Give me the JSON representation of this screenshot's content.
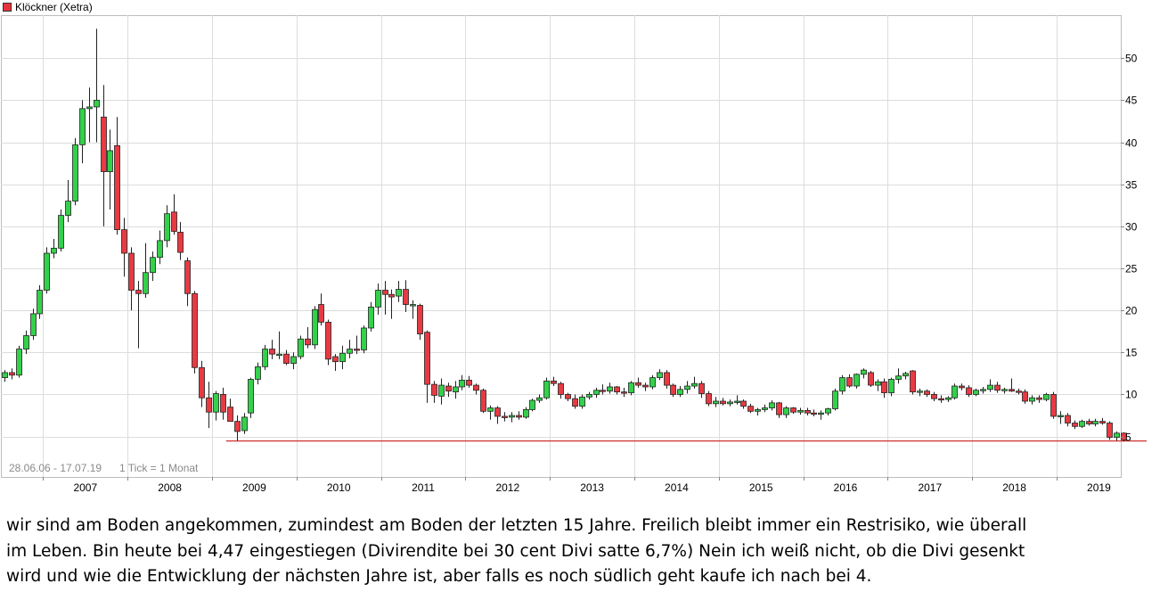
{
  "chart_data": {
    "type": "candlestick",
    "title": "Klöckner (Xetra)",
    "legend_placement": "top-left",
    "date_range_label": "28.06.06 - 17.07.19",
    "tick_label": "1 Tick = 1 Monat",
    "grid": true,
    "ylim": [
      4,
      55
    ],
    "y_ticks": [
      5,
      10,
      15,
      20,
      25,
      30,
      35,
      40,
      45,
      50
    ],
    "x_ticks": [
      "2007",
      "2008",
      "2009",
      "2010",
      "2011",
      "2012",
      "2013",
      "2014",
      "2015",
      "2016",
      "2017",
      "2018",
      "2019"
    ],
    "first_month": "2006-07",
    "ohlc": [
      [
        12.0,
        12.9,
        11.5,
        12.6
      ],
      [
        12.6,
        13.1,
        11.8,
        12.3
      ],
      [
        12.3,
        15.8,
        12.0,
        15.4
      ],
      [
        15.4,
        17.6,
        14.8,
        17.0
      ],
      [
        17.0,
        20.2,
        16.5,
        19.6
      ],
      [
        19.6,
        23.0,
        19.0,
        22.4
      ],
      [
        22.4,
        27.5,
        22.0,
        26.8
      ],
      [
        26.8,
        28.5,
        26.2,
        27.4
      ],
      [
        27.4,
        32.0,
        27.0,
        31.3
      ],
      [
        31.3,
        35.5,
        30.5,
        33.0
      ],
      [
        33.0,
        40.5,
        32.5,
        39.7
      ],
      [
        39.7,
        45.0,
        37.5,
        44.0
      ],
      [
        44.0,
        46.5,
        40.0,
        44.2
      ],
      [
        44.2,
        53.5,
        40.0,
        45.0
      ],
      [
        43.0,
        46.8,
        30.0,
        36.5
      ],
      [
        36.5,
        41.5,
        32.0,
        39.0
      ],
      [
        39.6,
        43.0,
        29.0,
        29.6
      ],
      [
        29.6,
        31.0,
        24.0,
        26.8
      ],
      [
        26.8,
        27.5,
        20.0,
        22.4
      ],
      [
        22.4,
        23.5,
        15.5,
        22.0
      ],
      [
        22.0,
        28.0,
        21.5,
        24.5
      ],
      [
        24.5,
        27.0,
        23.5,
        26.3
      ],
      [
        26.3,
        29.5,
        25.5,
        28.3
      ],
      [
        28.3,
        32.5,
        27.5,
        31.5
      ],
      [
        31.7,
        33.8,
        29.0,
        29.4
      ],
      [
        29.3,
        30.5,
        26.0,
        26.9
      ],
      [
        25.9,
        26.3,
        20.5,
        22.0
      ],
      [
        22.0,
        22.3,
        12.5,
        13.2
      ],
      [
        13.2,
        14.0,
        8.5,
        9.6
      ],
      [
        9.6,
        11.5,
        6.0,
        7.9
      ],
      [
        7.9,
        10.4,
        6.9,
        10.1
      ],
      [
        10.0,
        10.8,
        7.0,
        7.9
      ],
      [
        8.5,
        9.5,
        6.8,
        6.8
      ],
      [
        6.8,
        7.5,
        4.5,
        5.6
      ],
      [
        5.7,
        7.8,
        5.3,
        7.3
      ],
      [
        7.8,
        12.0,
        7.2,
        11.8
      ],
      [
        11.8,
        13.8,
        11.2,
        13.3
      ],
      [
        13.3,
        15.9,
        12.9,
        15.4
      ],
      [
        15.4,
        16.5,
        14.2,
        14.8
      ],
      [
        14.8,
        17.5,
        14.2,
        14.8
      ],
      [
        14.8,
        15.3,
        13.5,
        13.7
      ],
      [
        13.7,
        15.0,
        13.0,
        14.5
      ],
      [
        14.5,
        17.0,
        14.2,
        16.6
      ],
      [
        16.6,
        18.0,
        15.5,
        15.9
      ],
      [
        15.9,
        20.5,
        15.4,
        20.1
      ],
      [
        20.7,
        22.0,
        18.2,
        18.6
      ],
      [
        18.6,
        18.9,
        13.5,
        14.2
      ],
      [
        14.5,
        14.8,
        12.8,
        13.9
      ],
      [
        13.9,
        15.8,
        13.0,
        14.9
      ],
      [
        14.9,
        16.5,
        14.3,
        15.4
      ],
      [
        15.4,
        17.0,
        14.8,
        15.3
      ],
      [
        15.3,
        18.2,
        14.9,
        17.9
      ],
      [
        17.9,
        21.0,
        17.5,
        20.4
      ],
      [
        20.4,
        23.2,
        19.5,
        22.4
      ],
      [
        22.4,
        23.5,
        19.5,
        21.9
      ],
      [
        21.9,
        22.5,
        19.0,
        21.6
      ],
      [
        21.7,
        23.5,
        21.0,
        22.5
      ],
      [
        22.5,
        23.6,
        19.8,
        20.7
      ],
      [
        20.7,
        21.2,
        19.0,
        20.7
      ],
      [
        20.6,
        20.8,
        16.5,
        17.2
      ],
      [
        17.4,
        17.6,
        9.0,
        11.2
      ],
      [
        11.2,
        11.6,
        9.0,
        9.9
      ],
      [
        9.8,
        11.9,
        8.8,
        11.1
      ],
      [
        11.0,
        11.4,
        9.7,
        10.4
      ],
      [
        10.3,
        11.6,
        9.5,
        10.9
      ],
      [
        10.9,
        12.3,
        10.5,
        11.7
      ],
      [
        11.7,
        12.2,
        10.8,
        11.1
      ],
      [
        11.1,
        11.3,
        10.0,
        10.5
      ],
      [
        10.5,
        10.7,
        7.8,
        8.0
      ],
      [
        8.0,
        8.7,
        7.0,
        8.4
      ],
      [
        8.4,
        8.6,
        6.5,
        7.4
      ],
      [
        7.4,
        7.9,
        6.8,
        7.3
      ],
      [
        7.3,
        7.9,
        6.7,
        7.5
      ],
      [
        7.5,
        8.0,
        7.0,
        7.3
      ],
      [
        7.3,
        8.5,
        7.1,
        8.2
      ],
      [
        8.2,
        9.5,
        8.0,
        9.3
      ],
      [
        9.3,
        10.0,
        9.0,
        9.6
      ],
      [
        9.6,
        12.0,
        9.4,
        11.6
      ],
      [
        11.6,
        12.1,
        11.0,
        11.3
      ],
      [
        11.3,
        11.5,
        9.5,
        10.0
      ],
      [
        10.0,
        10.2,
        9.2,
        9.5
      ],
      [
        9.5,
        10.0,
        8.3,
        8.6
      ],
      [
        8.6,
        10.0,
        8.3,
        9.7
      ],
      [
        9.7,
        10.3,
        9.4,
        10.0
      ],
      [
        10.0,
        10.8,
        9.6,
        10.5
      ],
      [
        10.5,
        11.2,
        10.0,
        10.4
      ],
      [
        10.4,
        11.4,
        10.1,
        10.9
      ],
      [
        10.9,
        11.0,
        10.0,
        10.3
      ],
      [
        10.3,
        10.8,
        9.7,
        10.2
      ],
      [
        10.2,
        11.6,
        9.9,
        11.4
      ],
      [
        11.4,
        12.0,
        10.8,
        11.1
      ],
      [
        11.1,
        11.4,
        10.4,
        10.9
      ],
      [
        10.9,
        12.3,
        10.6,
        12.0
      ],
      [
        12.0,
        13.0,
        11.7,
        12.6
      ],
      [
        12.6,
        12.9,
        10.7,
        11.1
      ],
      [
        11.1,
        11.3,
        9.7,
        10.0
      ],
      [
        10.0,
        11.0,
        9.7,
        10.6
      ],
      [
        10.6,
        11.6,
        10.1,
        11.0
      ],
      [
        11.0,
        12.1,
        10.7,
        11.3
      ],
      [
        11.3,
        11.6,
        9.6,
        10.1
      ],
      [
        10.1,
        10.4,
        8.6,
        8.9
      ],
      [
        8.9,
        9.7,
        8.5,
        9.2
      ],
      [
        9.2,
        9.6,
        8.7,
        8.9
      ],
      [
        8.9,
        9.4,
        8.6,
        9.1
      ],
      [
        9.1,
        9.9,
        8.8,
        9.2
      ],
      [
        9.2,
        9.4,
        8.3,
        8.6
      ],
      [
        8.6,
        8.9,
        7.8,
        8.0
      ],
      [
        8.0,
        8.4,
        7.5,
        8.2
      ],
      [
        8.2,
        8.8,
        7.9,
        8.4
      ],
      [
        8.4,
        9.3,
        8.1,
        9.0
      ],
      [
        9.0,
        9.1,
        7.2,
        7.6
      ],
      [
        7.6,
        8.6,
        7.2,
        8.4
      ],
      [
        8.4,
        8.5,
        7.7,
        7.9
      ],
      [
        7.9,
        8.4,
        7.6,
        8.1
      ],
      [
        8.1,
        8.4,
        7.5,
        7.8
      ],
      [
        7.8,
        8.2,
        7.4,
        7.7
      ],
      [
        7.7,
        8.1,
        7.0,
        7.8
      ],
      [
        7.8,
        8.4,
        7.5,
        8.3
      ],
      [
        8.3,
        10.7,
        8.1,
        10.4
      ],
      [
        10.4,
        12.3,
        10.0,
        12.0
      ],
      [
        12.0,
        12.4,
        10.8,
        11.0
      ],
      [
        11.0,
        12.5,
        10.7,
        12.4
      ],
      [
        12.4,
        13.1,
        11.9,
        12.9
      ],
      [
        12.6,
        12.8,
        10.9,
        11.1
      ],
      [
        11.1,
        11.8,
        10.4,
        11.5
      ],
      [
        11.5,
        11.9,
        9.6,
        10.2
      ],
      [
        10.2,
        12.0,
        9.8,
        11.8
      ],
      [
        11.8,
        13.1,
        11.3,
        12.2
      ],
      [
        12.2,
        12.7,
        11.8,
        12.5
      ],
      [
        12.8,
        12.9,
        10.0,
        10.3
      ],
      [
        10.3,
        10.7,
        9.8,
        10.4
      ],
      [
        10.4,
        10.6,
        9.7,
        10.0
      ],
      [
        10.0,
        10.3,
        9.2,
        9.5
      ],
      [
        9.5,
        9.9,
        9.0,
        9.4
      ],
      [
        9.4,
        9.8,
        9.1,
        9.6
      ],
      [
        9.6,
        11.3,
        9.4,
        11.0
      ],
      [
        11.0,
        11.3,
        10.5,
        10.8
      ],
      [
        10.8,
        11.1,
        9.7,
        10.0
      ],
      [
        10.0,
        10.7,
        9.8,
        10.5
      ],
      [
        10.5,
        10.9,
        10.1,
        10.6
      ],
      [
        10.6,
        11.8,
        10.3,
        11.1
      ],
      [
        11.1,
        11.5,
        10.2,
        10.5
      ],
      [
        10.5,
        10.8,
        10.1,
        10.6
      ],
      [
        10.6,
        11.9,
        10.3,
        10.4
      ],
      [
        10.4,
        10.7,
        10.0,
        10.3
      ],
      [
        10.3,
        10.6,
        8.9,
        9.2
      ],
      [
        9.2,
        9.9,
        8.8,
        9.6
      ],
      [
        9.6,
        9.9,
        9.0,
        9.4
      ],
      [
        9.4,
        10.2,
        9.2,
        10.0
      ],
      [
        10.0,
        10.3,
        7.1,
        7.4
      ],
      [
        7.4,
        8.0,
        6.5,
        7.5
      ],
      [
        7.5,
        7.8,
        6.2,
        6.6
      ],
      [
        6.6,
        6.9,
        5.9,
        6.2
      ],
      [
        6.2,
        7.0,
        6.0,
        6.8
      ],
      [
        6.8,
        7.1,
        6.3,
        6.5
      ],
      [
        6.5,
        7.1,
        6.2,
        6.8
      ],
      [
        6.8,
        7.2,
        6.4,
        6.6
      ],
      [
        6.6,
        6.8,
        4.6,
        4.9
      ],
      [
        4.9,
        5.6,
        4.5,
        5.4
      ],
      [
        5.4,
        5.5,
        4.4,
        4.6
      ]
    ],
    "support_line": {
      "value": 4.47
    }
  },
  "comment": [
    "wir sind am Boden angekommen, zumindest am Boden der letzten 15 Jahre. Freilich bleibt immer ein Restrisiko, wie überall",
    "im Leben. Bin heute bei 4,47 eingestiegen (Divirendite bei 30 cent Divi satte 6,7%) Nein ich weiß nicht, ob die Divi gesenkt",
    "wird und wie die Entwicklung der nächsten Jahre ist, aber falls es noch südlich geht kaufe ich nach bei 4."
  ],
  "colors": {
    "up_candle": "#33d14a",
    "down_candle": "#e83a42",
    "grid": "#dddddd",
    "support_line": "#d03030"
  }
}
